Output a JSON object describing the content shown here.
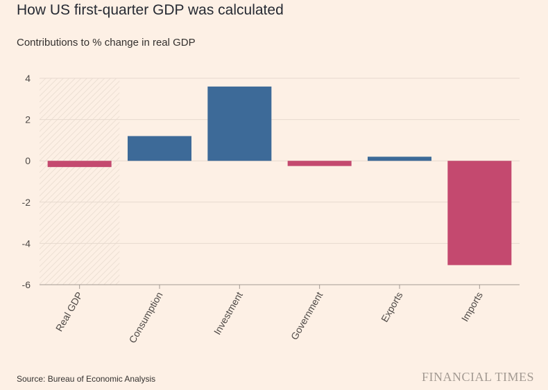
{
  "colors": {
    "background": "#fdf0e5",
    "positive": "#3d6a98",
    "negative": "#c4496f",
    "grid": "#e6d9ce",
    "axis": "#a39a92",
    "highlight_hatch": "#ecdfd3"
  },
  "chart_data": {
    "type": "bar",
    "title": "How US first-quarter GDP was calculated",
    "subtitle": "Contributions to % change in real GDP",
    "xlabel": "",
    "ylabel": "",
    "ylim": [
      -6,
      4
    ],
    "yticks": [
      4,
      2,
      0,
      -2,
      -4,
      -6
    ],
    "ytick_labels": [
      "4",
      "2",
      "0",
      "-2",
      "-4",
      "-6"
    ],
    "grid": true,
    "highlighted_category": "Real GDP",
    "categories": [
      "Real GDP",
      "Consumption",
      "Investment",
      "Government",
      "Exports",
      "Imports"
    ],
    "values": [
      -0.3,
      1.2,
      3.6,
      -0.25,
      0.2,
      -5.05
    ]
  },
  "footer": {
    "source": "Source: Bureau of Economic Analysis",
    "brand": "FINANCIAL TIMES"
  }
}
